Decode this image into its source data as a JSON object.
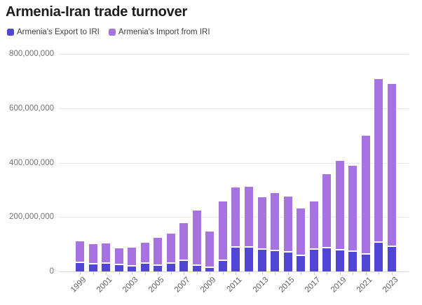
{
  "chart_data": {
    "type": "bar",
    "stacked": true,
    "title": "Armenia-Iran trade turnover",
    "categories": [
      1999,
      2000,
      2001,
      2002,
      2003,
      2004,
      2005,
      2006,
      2007,
      2008,
      2009,
      2010,
      2011,
      2012,
      2013,
      2014,
      2015,
      2016,
      2017,
      2018,
      2019,
      2020,
      2021,
      2022,
      2023
    ],
    "series": [
      {
        "name": "Armenia's Export to IRI",
        "color": "#5145d5",
        "values": [
          33000000,
          28000000,
          30000000,
          25000000,
          20000000,
          30000000,
          24000000,
          30000000,
          40000000,
          24000000,
          15000000,
          40000000,
          90000000,
          90000000,
          83000000,
          77000000,
          71000000,
          60000000,
          83000000,
          88000000,
          80000000,
          74000000,
          65000000,
          109000000,
          92000000
        ]
      },
      {
        "name": "Armenia's Import from IRI",
        "color": "#a673e0",
        "values": [
          79000000,
          74000000,
          75000000,
          62000000,
          69000000,
          78000000,
          102000000,
          112000000,
          140000000,
          203000000,
          134000000,
          219000000,
          221000000,
          224000000,
          191000000,
          214000000,
          206000000,
          174000000,
          176000000,
          272000000,
          328000000,
          318000000,
          437000000,
          601000000,
          601000000
        ]
      }
    ],
    "ylim": [
      0,
      800000000
    ],
    "yticks": [
      0,
      200000000,
      400000000,
      600000000,
      800000000
    ],
    "ytick_labels": [
      "0",
      "200,000,000",
      "400,000,000",
      "600,000,000",
      "800,000,000"
    ],
    "x_labeled_categories": [
      1999,
      2001,
      2003,
      2005,
      2007,
      2009,
      2011,
      2013,
      2015,
      2017,
      2019,
      2021,
      2023
    ],
    "grid": "horizontal",
    "legend_position": "top-left",
    "colors": {
      "grid": "#e6e6e6",
      "axis_text": "#737373",
      "x_axis_text": "#5e5e5e",
      "title_text": "#1d1d1d"
    }
  }
}
